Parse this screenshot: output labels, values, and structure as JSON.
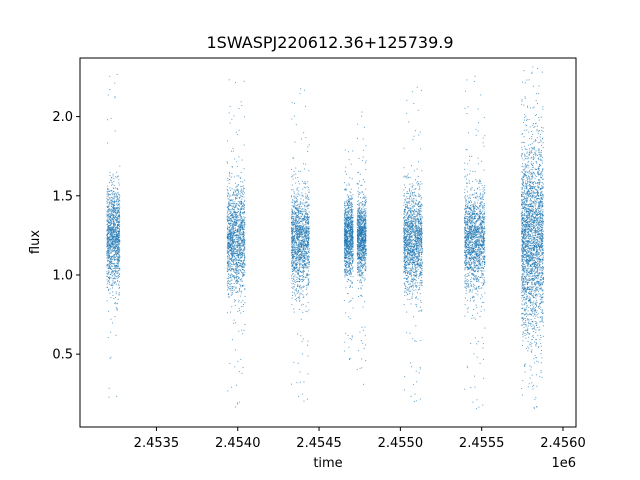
{
  "chart_data": {
    "type": "scatter",
    "title": "1SWASPJ220612.36+125739.9",
    "xlabel": "time",
    "ylabel": "flux",
    "x_offset_label": "1e6",
    "x_tick_values": [
      2.4535,
      2.454,
      2.4545,
      2.455,
      2.4555,
      2.456
    ],
    "x_tick_labels": [
      "2.4535",
      "2.4540",
      "2.4545",
      "2.4550",
      "2.4555",
      "2.4560"
    ],
    "y_tick_values": [
      0.5,
      1.0,
      1.5,
      2.0
    ],
    "y_tick_labels": [
      "0.5",
      "1.0",
      "1.5",
      "2.0"
    ],
    "xlim": [
      2.45303,
      2.45608
    ],
    "ylim": [
      0.04,
      2.37
    ],
    "grid": false,
    "point_color": "#1f77b4",
    "series": [
      {
        "clusters": [
          {
            "x_range": [
              2.453195,
              2.453275
            ],
            "y_center": 1.24,
            "y_spread": 0.16,
            "y_min": 0.15,
            "y_max": 2.32
          },
          {
            "x_range": [
              2.453935,
              2.454045
            ],
            "y_center": 1.22,
            "y_spread": 0.17,
            "y_min": 0.16,
            "y_max": 2.28
          },
          {
            "x_range": [
              2.45433,
              2.45444
            ],
            "y_center": 1.22,
            "y_spread": 0.16,
            "y_min": 0.17,
            "y_max": 2.2
          },
          {
            "x_range": [
              2.454655,
              2.45471
            ],
            "y_center": 1.24,
            "y_spread": 0.12,
            "y_min": 0.45,
            "y_max": 1.82
          },
          {
            "x_range": [
              2.454735,
              2.45479
            ],
            "y_center": 1.24,
            "y_spread": 0.12,
            "y_min": 0.28,
            "y_max": 2.05
          },
          {
            "x_range": [
              2.45502,
              2.455135
            ],
            "y_center": 1.22,
            "y_spread": 0.16,
            "y_min": 0.17,
            "y_max": 2.22
          },
          {
            "x_range": [
              2.455395,
              2.45552
            ],
            "y_center": 1.22,
            "y_spread": 0.16,
            "y_min": 0.13,
            "y_max": 2.28
          },
          {
            "x_range": [
              2.455745,
              2.45588
            ],
            "y_center": 1.24,
            "y_spread": 0.3,
            "y_min": 0.13,
            "y_max": 2.34
          }
        ]
      }
    ]
  }
}
